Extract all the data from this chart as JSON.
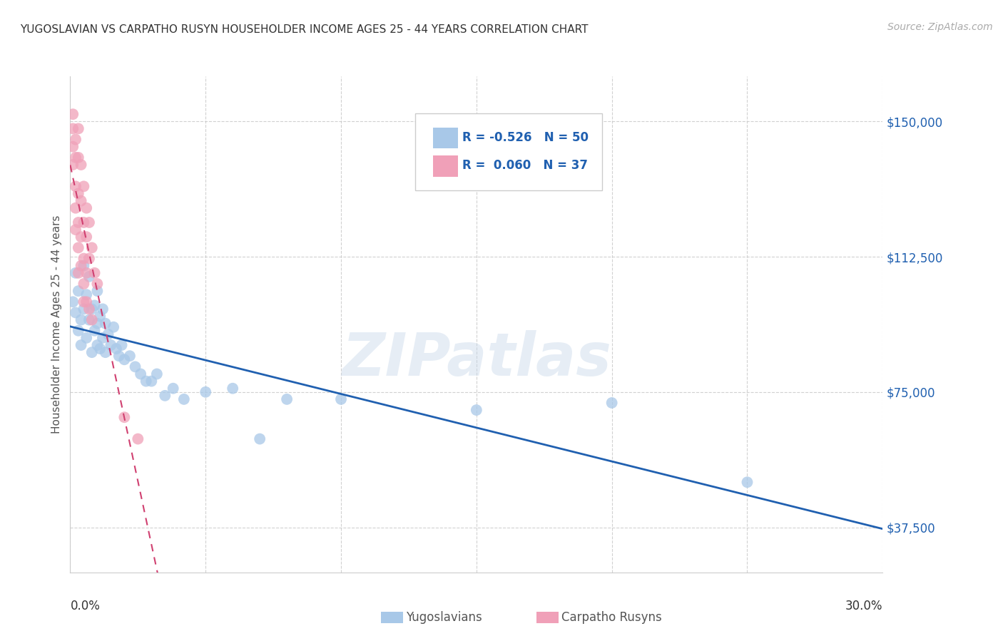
{
  "title": "YUGOSLAVIAN VS CARPATHO RUSYN HOUSEHOLDER INCOME AGES 25 - 44 YEARS CORRELATION CHART",
  "source": "Source: ZipAtlas.com",
  "ylabel": "Householder Income Ages 25 - 44 years",
  "xmin": 0.0,
  "xmax": 0.3,
  "ymin": 25000,
  "ymax": 162500,
  "yticks": [
    37500,
    75000,
    112500,
    150000
  ],
  "ytick_labels": [
    "$37,500",
    "$75,000",
    "$112,500",
    "$150,000"
  ],
  "grid_color": "#cccccc",
  "background_color": "#ffffff",
  "blue_color": "#a8c8e8",
  "pink_color": "#f0a0b8",
  "blue_line_color": "#2060b0",
  "pink_line_color": "#d04070",
  "watermark": "ZIPatlas",
  "yugoslavians_x": [
    0.001,
    0.002,
    0.002,
    0.003,
    0.003,
    0.004,
    0.004,
    0.005,
    0.005,
    0.006,
    0.006,
    0.007,
    0.007,
    0.008,
    0.008,
    0.009,
    0.009,
    0.01,
    0.01,
    0.01,
    0.011,
    0.011,
    0.012,
    0.012,
    0.013,
    0.013,
    0.014,
    0.015,
    0.016,
    0.017,
    0.018,
    0.019,
    0.02,
    0.022,
    0.024,
    0.026,
    0.028,
    0.03,
    0.032,
    0.035,
    0.038,
    0.042,
    0.05,
    0.06,
    0.07,
    0.08,
    0.1,
    0.15,
    0.2,
    0.25
  ],
  "yugoslavians_y": [
    100000,
    97000,
    108000,
    92000,
    103000,
    95000,
    88000,
    110000,
    98000,
    102000,
    90000,
    95000,
    107000,
    86000,
    98000,
    92000,
    99000,
    88000,
    94000,
    103000,
    87000,
    96000,
    90000,
    98000,
    86000,
    94000,
    91000,
    88000,
    93000,
    87000,
    85000,
    88000,
    84000,
    85000,
    82000,
    80000,
    78000,
    78000,
    80000,
    74000,
    76000,
    73000,
    75000,
    76000,
    62000,
    73000,
    73000,
    70000,
    72000,
    50000
  ],
  "carpatho_x": [
    0.001,
    0.001,
    0.001,
    0.001,
    0.002,
    0.002,
    0.002,
    0.002,
    0.002,
    0.003,
    0.003,
    0.003,
    0.003,
    0.003,
    0.003,
    0.004,
    0.004,
    0.004,
    0.004,
    0.005,
    0.005,
    0.005,
    0.005,
    0.005,
    0.006,
    0.006,
    0.006,
    0.006,
    0.007,
    0.007,
    0.007,
    0.008,
    0.008,
    0.009,
    0.01,
    0.02,
    0.025
  ],
  "carpatho_y": [
    152000,
    148000,
    143000,
    138000,
    145000,
    140000,
    132000,
    126000,
    120000,
    148000,
    140000,
    130000,
    122000,
    115000,
    108000,
    138000,
    128000,
    118000,
    110000,
    132000,
    122000,
    112000,
    105000,
    100000,
    126000,
    118000,
    108000,
    100000,
    122000,
    112000,
    98000,
    115000,
    95000,
    108000,
    105000,
    68000,
    62000
  ]
}
